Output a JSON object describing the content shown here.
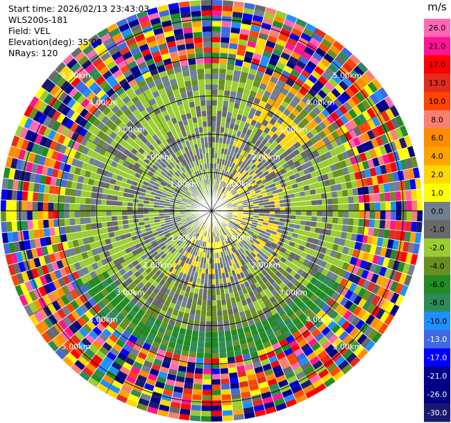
{
  "header": {
    "start_time_label": "Start time:",
    "start_time": "2026/02/13 23:43:03",
    "instrument": "WLS200s-181",
    "field_label": "Field:",
    "field": "VEL",
    "elevation_label": "Elevation(deg):",
    "elevation": "35.00",
    "nrays_label": "NRays:",
    "nrays": "120"
  },
  "chart_data": {
    "type": "heatmap",
    "projection": "polar-ppi",
    "title": "",
    "field": "VEL",
    "units": "m/s",
    "n_rays": 120,
    "max_range_km": 5.5,
    "range_rings_km": [
      1,
      2,
      3,
      4,
      5
    ],
    "range_labels": [
      "1.00km",
      "2.00km",
      "3.00km",
      "4.00km",
      "5.00km"
    ],
    "grid": true,
    "colorbar": {
      "label": "m/s",
      "placement": "right",
      "ticks": [
        "26.0",
        "21.0",
        "17.0",
        "13.0",
        "10.0",
        "8.0",
        "6.0",
        "4.0",
        "2.0",
        "1.0",
        "0.0",
        "-1.0",
        "-2.0",
        "-4.0",
        "-6.0",
        "-8.0",
        "-10.0",
        "-13.0",
        "-17.0",
        "-21.0",
        "-26.0",
        "-30.0"
      ],
      "colors": [
        "#ff69b4",
        "#ff1493",
        "#ff0000",
        "#e32b1e",
        "#ff4500",
        "#fa8072",
        "#ff8c00",
        "#ffa500",
        "#ffd700",
        "#ffff00",
        "#708090",
        "#696969",
        "#9acd32",
        "#6b8e23",
        "#228b22",
        "#2e8b57",
        "#1e90ff",
        "#4169e1",
        "#0000ff",
        "#00008b",
        "#000080",
        "#191970"
      ]
    }
  }
}
